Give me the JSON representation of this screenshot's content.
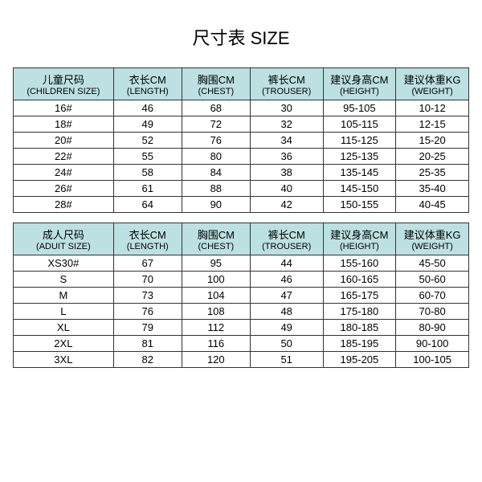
{
  "title": "尺寸表 SIZE",
  "title_fontsize": 22,
  "title_color": "#000000",
  "background_color": "#ffffff",
  "header_bg": "#bde0e2",
  "border_color": "#333333",
  "row_fontsize": 13,
  "header_fontsize_cjk": 13,
  "header_fontsize_en": 11,
  "col_widths_pct": [
    22,
    15,
    15,
    16,
    16,
    16
  ],
  "children_table": {
    "columns": [
      {
        "cjk": "儿童尺码",
        "en": "(CHILDREN SIZE)"
      },
      {
        "cjk": "衣长CM",
        "en": "(LENGTH)"
      },
      {
        "cjk": "胸围CM",
        "en": "(CHEST)"
      },
      {
        "cjk": "裤长CM",
        "en": "(TROUSER)"
      },
      {
        "cjk": "建议身高CM",
        "en": "(HEIGHT)"
      },
      {
        "cjk": "建议体重KG",
        "en": "(WEIGHT)"
      }
    ],
    "rows": [
      [
        "16#",
        "46",
        "68",
        "30",
        "95-105",
        "10-12"
      ],
      [
        "18#",
        "49",
        "72",
        "32",
        "105-115",
        "12-15"
      ],
      [
        "20#",
        "52",
        "76",
        "34",
        "115-125",
        "15-20"
      ],
      [
        "22#",
        "55",
        "80",
        "36",
        "125-135",
        "20-25"
      ],
      [
        "24#",
        "58",
        "84",
        "38",
        "135-145",
        "25-35"
      ],
      [
        "26#",
        "61",
        "88",
        "40",
        "145-150",
        "35-40"
      ],
      [
        "28#",
        "64",
        "90",
        "42",
        "150-155",
        "40-45"
      ]
    ]
  },
  "adult_table": {
    "columns": [
      {
        "cjk": "成人尺码",
        "en": "(ADUIT SIZE)"
      },
      {
        "cjk": "衣长CM",
        "en": "(LENGTH)"
      },
      {
        "cjk": "胸围CM",
        "en": "(CHEST)"
      },
      {
        "cjk": "裤长CM",
        "en": "(TROUSER)"
      },
      {
        "cjk": "建议身高CM",
        "en": "(HEIGHT)"
      },
      {
        "cjk": "建议体重KG",
        "en": "(WEIGHT)"
      }
    ],
    "rows": [
      [
        "XS30#",
        "67",
        "95",
        "44",
        "155-160",
        "45-50"
      ],
      [
        "S",
        "70",
        "100",
        "46",
        "160-165",
        "50-60"
      ],
      [
        "M",
        "73",
        "104",
        "47",
        "165-175",
        "60-70"
      ],
      [
        "L",
        "76",
        "108",
        "48",
        "175-180",
        "70-80"
      ],
      [
        "XL",
        "79",
        "112",
        "49",
        "180-185",
        "80-90"
      ],
      [
        "2XL",
        "81",
        "116",
        "50",
        "185-195",
        "90-100"
      ],
      [
        "3XL",
        "82",
        "120",
        "51",
        "195-205",
        "100-105"
      ]
    ]
  }
}
